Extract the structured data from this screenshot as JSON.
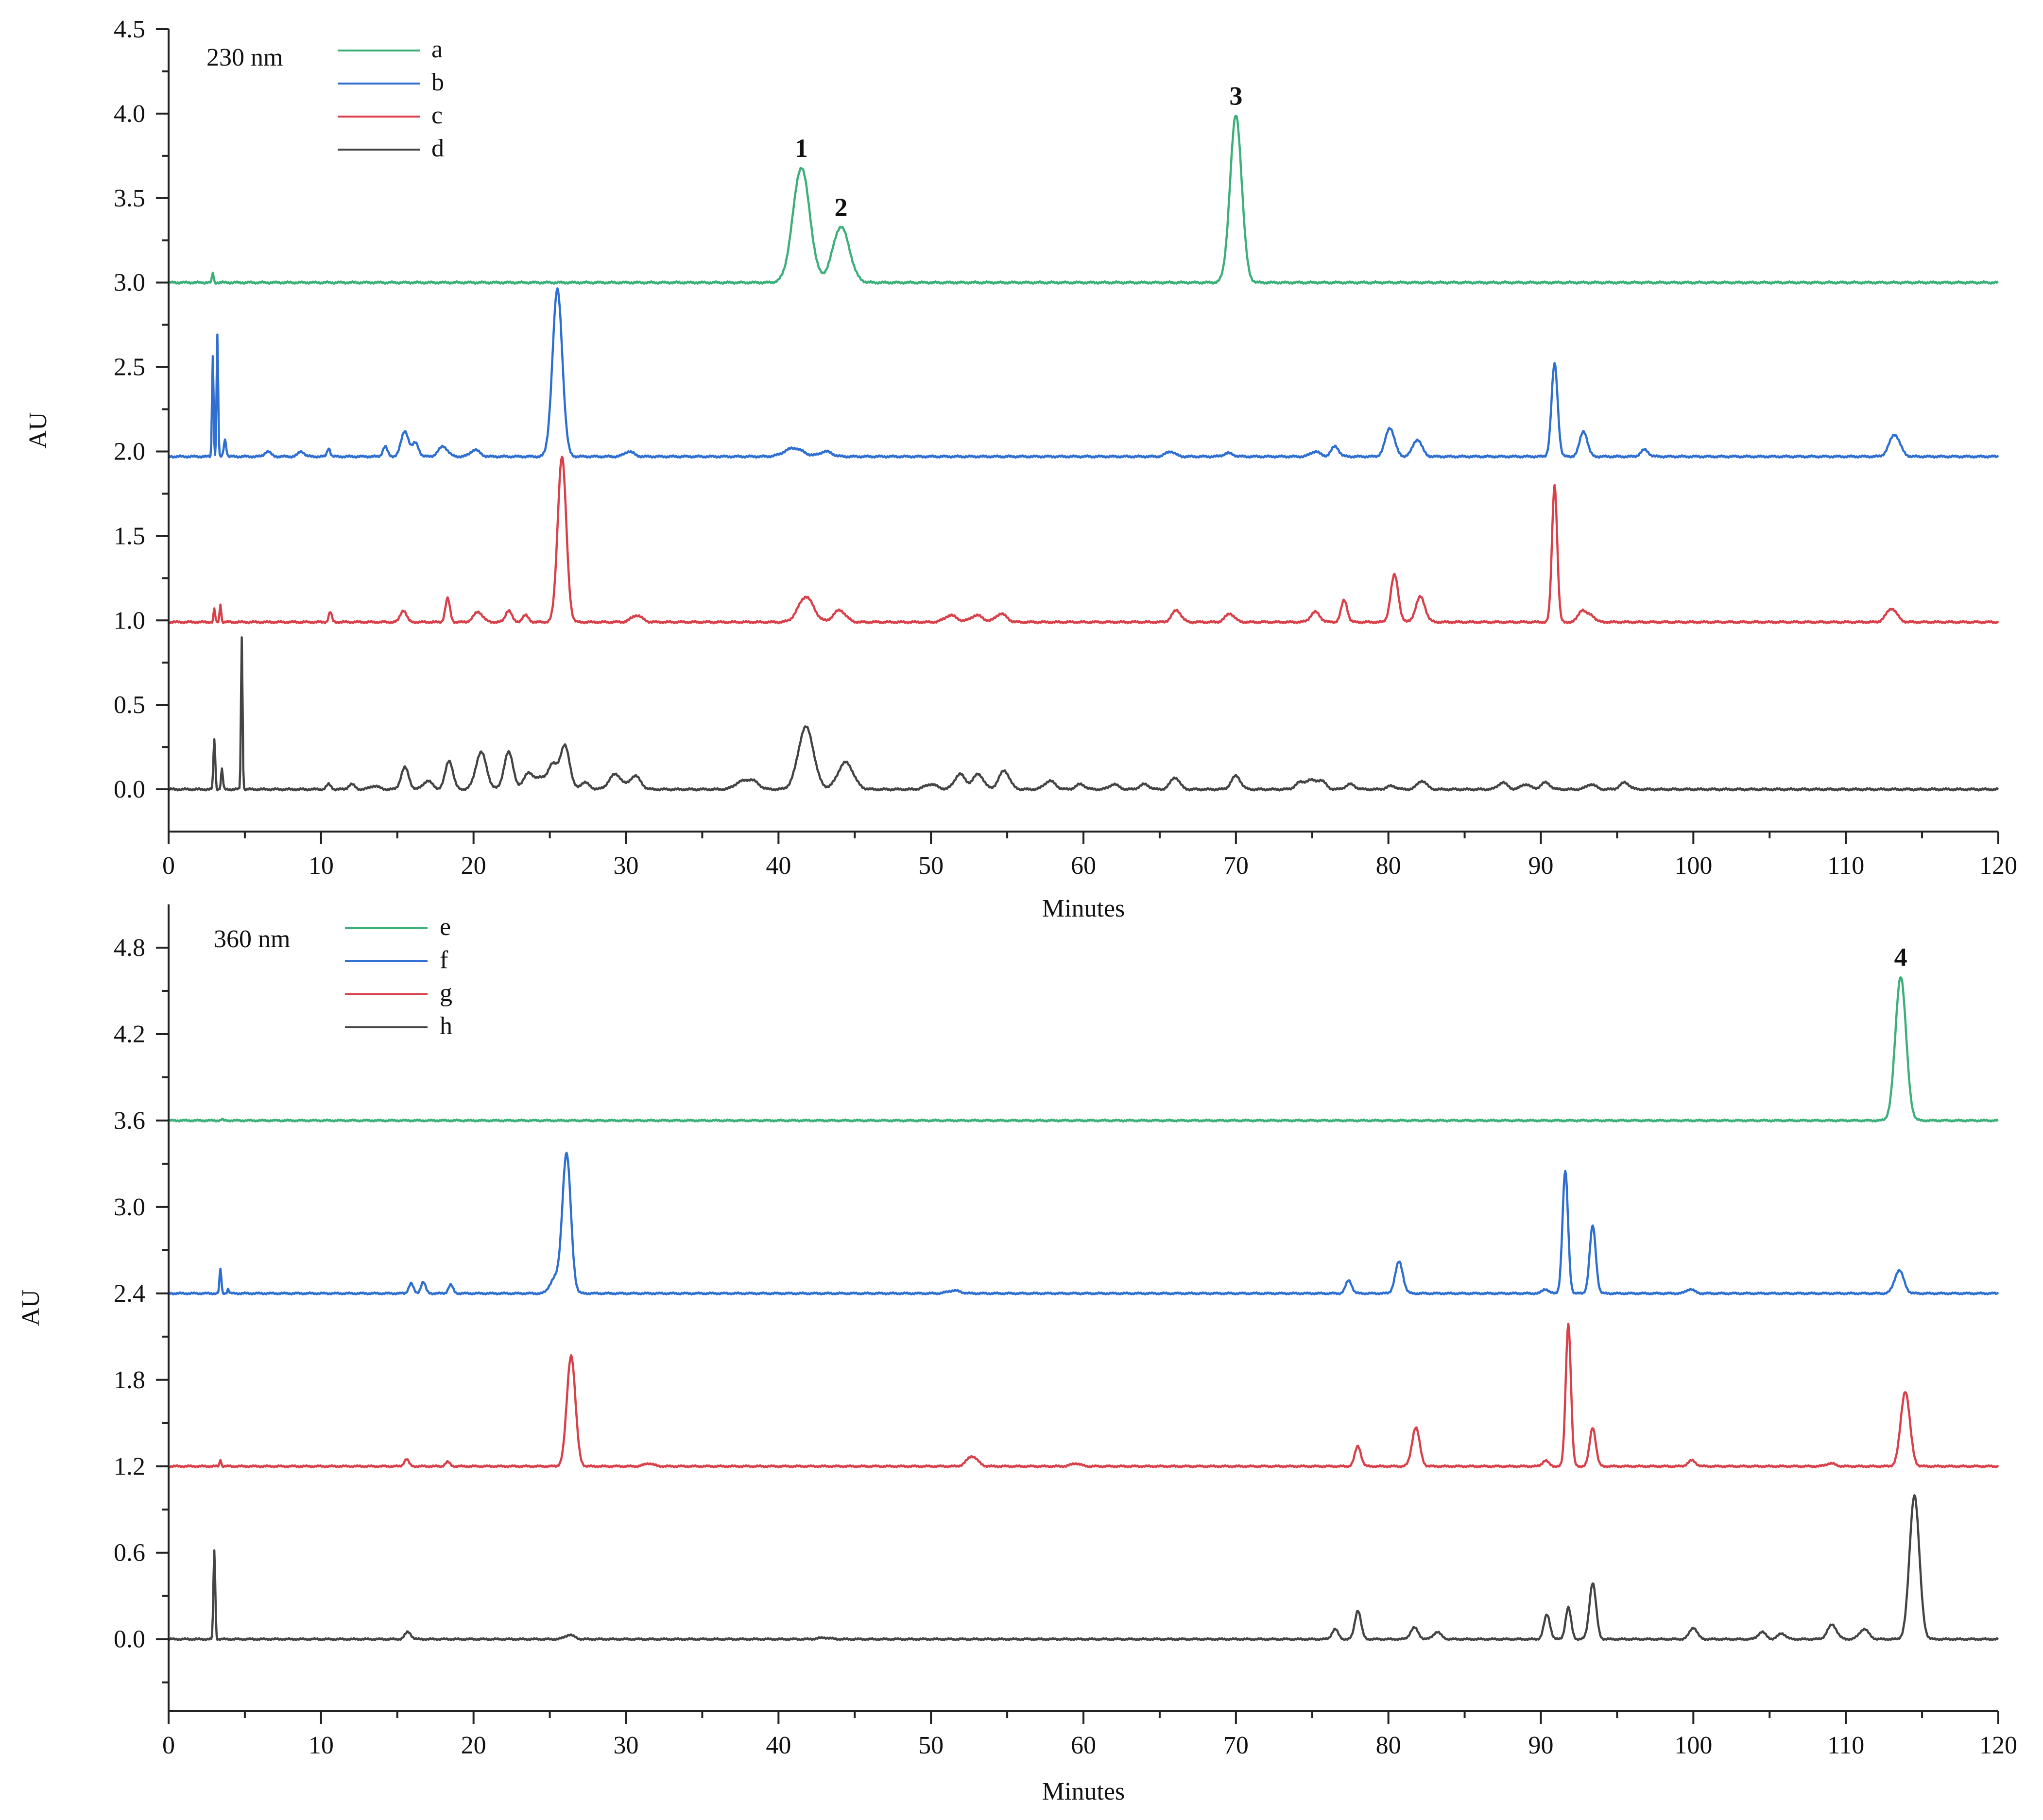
{
  "chart_data": [
    {
      "type": "line",
      "wavelength_label": "230 nm",
      "xlabel": "Minutes",
      "ylabel": "AU",
      "xlim": [
        0,
        120
      ],
      "ylim": [
        -0.25,
        4.5
      ],
      "x_ticks": [
        0,
        10,
        20,
        30,
        40,
        50,
        60,
        70,
        80,
        90,
        100,
        110,
        120
      ],
      "y_ticks": [
        0.0,
        0.5,
        1.0,
        1.5,
        2.0,
        2.5,
        3.0,
        3.5,
        4.0,
        4.5
      ],
      "x_tick_labels": [
        "0",
        "10",
        "20",
        "30",
        "40",
        "50",
        "60",
        "70",
        "80",
        "90",
        "100",
        "110",
        "120"
      ],
      "y_tick_labels": [
        "0.0",
        "0.5",
        "1.0",
        "1.5",
        "2.0",
        "2.5",
        "3.0",
        "3.5",
        "4.0",
        "4.5"
      ],
      "legend_position": "top-left",
      "grid": false,
      "series": [
        {
          "name": "a",
          "color": "#3cb07a",
          "baseline": 3.0,
          "peaks": [
            [
              2.9,
              0.06,
              0.05
            ],
            [
              41.5,
              0.68,
              0.55
            ],
            [
              44.1,
              0.33,
              0.55
            ],
            [
              70.0,
              0.99,
              0.38
            ]
          ]
        },
        {
          "name": "b",
          "color": "#2e6fd1",
          "baseline": 1.97,
          "peaks": [
            [
              2.9,
              0.6,
              0.05
            ],
            [
              3.2,
              0.72,
              0.05
            ],
            [
              3.7,
              0.1,
              0.08
            ],
            [
              6.5,
              0.03,
              0.2
            ],
            [
              8.7,
              0.03,
              0.2
            ],
            [
              10.5,
              0.05,
              0.1
            ],
            [
              14.2,
              0.06,
              0.15
            ],
            [
              15.5,
              0.15,
              0.25
            ],
            [
              16.2,
              0.08,
              0.2
            ],
            [
              18.0,
              0.06,
              0.3
            ],
            [
              20.1,
              0.04,
              0.3
            ],
            [
              25.5,
              0.99,
              0.32
            ],
            [
              30.2,
              0.03,
              0.3
            ],
            [
              41.0,
              0.05,
              0.6
            ],
            [
              43.1,
              0.03,
              0.4
            ],
            [
              65.7,
              0.03,
              0.3
            ],
            [
              69.5,
              0.02,
              0.3
            ],
            [
              75.2,
              0.03,
              0.3
            ],
            [
              76.5,
              0.06,
              0.25
            ],
            [
              80.1,
              0.17,
              0.3
            ],
            [
              81.9,
              0.1,
              0.3
            ],
            [
              90.9,
              0.55,
              0.2
            ],
            [
              92.8,
              0.15,
              0.25
            ],
            [
              96.8,
              0.04,
              0.25
            ],
            [
              113.2,
              0.13,
              0.35
            ]
          ]
        },
        {
          "name": "c",
          "color": "#d9414a",
          "baseline": 0.99,
          "peaks": [
            [
              3.0,
              0.08,
              0.05
            ],
            [
              3.4,
              0.11,
              0.05
            ],
            [
              10.6,
              0.06,
              0.1
            ],
            [
              15.4,
              0.07,
              0.2
            ],
            [
              18.3,
              0.14,
              0.15
            ],
            [
              20.3,
              0.06,
              0.3
            ],
            [
              22.3,
              0.07,
              0.2
            ],
            [
              23.4,
              0.04,
              0.2
            ],
            [
              25.8,
              0.98,
              0.28
            ],
            [
              30.7,
              0.04,
              0.35
            ],
            [
              41.8,
              0.15,
              0.5
            ],
            [
              44.0,
              0.07,
              0.4
            ],
            [
              51.3,
              0.04,
              0.4
            ],
            [
              53.0,
              0.04,
              0.4
            ],
            [
              54.6,
              0.05,
              0.35
            ],
            [
              66.1,
              0.07,
              0.3
            ],
            [
              69.6,
              0.05,
              0.3
            ],
            [
              75.2,
              0.06,
              0.3
            ],
            [
              77.1,
              0.13,
              0.2
            ],
            [
              80.4,
              0.28,
              0.25
            ],
            [
              82.1,
              0.15,
              0.3
            ],
            [
              90.9,
              0.81,
              0.17
            ],
            [
              92.7,
              0.07,
              0.25
            ],
            [
              93.3,
              0.04,
              0.25
            ],
            [
              113.0,
              0.08,
              0.35
            ]
          ]
        },
        {
          "name": "d",
          "color": "#444444",
          "baseline": 0.0,
          "peaks": [
            [
              3.0,
              0.3,
              0.06
            ],
            [
              3.5,
              0.12,
              0.06
            ],
            [
              4.8,
              0.9,
              0.05
            ],
            [
              10.5,
              0.03,
              0.15
            ],
            [
              12.0,
              0.03,
              0.2
            ],
            [
              13.5,
              0.02,
              0.3
            ],
            [
              15.5,
              0.13,
              0.25
            ],
            [
              17.0,
              0.05,
              0.3
            ],
            [
              18.4,
              0.17,
              0.25
            ],
            [
              20.5,
              0.22,
              0.35
            ],
            [
              22.3,
              0.22,
              0.3
            ],
            [
              23.6,
              0.1,
              0.3
            ],
            [
              24.4,
              0.07,
              0.3
            ],
            [
              25.2,
              0.15,
              0.3
            ],
            [
              26.0,
              0.26,
              0.3
            ],
            [
              27.3,
              0.04,
              0.3
            ],
            [
              29.3,
              0.09,
              0.4
            ],
            [
              30.6,
              0.08,
              0.35
            ],
            [
              37.5,
              0.04,
              0.4
            ],
            [
              38.3,
              0.05,
              0.4
            ],
            [
              41.8,
              0.37,
              0.5
            ],
            [
              44.4,
              0.16,
              0.5
            ],
            [
              50.0,
              0.03,
              0.4
            ],
            [
              51.9,
              0.09,
              0.35
            ],
            [
              53.1,
              0.09,
              0.35
            ],
            [
              54.8,
              0.11,
              0.35
            ],
            [
              57.8,
              0.05,
              0.35
            ],
            [
              59.8,
              0.03,
              0.3
            ],
            [
              62.0,
              0.03,
              0.3
            ],
            [
              64.0,
              0.03,
              0.3
            ],
            [
              66.0,
              0.07,
              0.3
            ],
            [
              70.0,
              0.08,
              0.3
            ],
            [
              74.2,
              0.04,
              0.3
            ],
            [
              74.9,
              0.05,
              0.3
            ],
            [
              75.6,
              0.05,
              0.3
            ],
            [
              77.5,
              0.03,
              0.3
            ],
            [
              80.2,
              0.02,
              0.3
            ],
            [
              82.2,
              0.05,
              0.3
            ],
            [
              87.5,
              0.04,
              0.3
            ],
            [
              89.0,
              0.03,
              0.3
            ],
            [
              90.3,
              0.04,
              0.3
            ],
            [
              93.3,
              0.03,
              0.3
            ],
            [
              95.5,
              0.04,
              0.3
            ]
          ]
        }
      ],
      "annotations": [
        {
          "label": "1",
          "x": 41.5,
          "y": 3.68
        },
        {
          "label": "2",
          "x": 44.1,
          "y": 3.33
        },
        {
          "label": "3",
          "x": 70.0,
          "y": 3.99
        }
      ]
    },
    {
      "type": "line",
      "wavelength_label": "360 nm",
      "xlabel": "Minutes",
      "ylabel": "AU",
      "xlim": [
        0,
        120
      ],
      "ylim": [
        -0.5,
        5.1
      ],
      "x_ticks": [
        0,
        10,
        20,
        30,
        40,
        50,
        60,
        70,
        80,
        90,
        100,
        110,
        120
      ],
      "y_ticks": [
        0.0,
        0.6,
        1.2,
        1.8,
        2.4,
        3.0,
        3.6,
        4.2,
        4.8
      ],
      "x_tick_labels": [
        "0",
        "10",
        "20",
        "30",
        "40",
        "50",
        "60",
        "70",
        "80",
        "90",
        "100",
        "110",
        "120"
      ],
      "y_tick_labels": [
        "0.0",
        "0.6",
        "1.2",
        "1.8",
        "2.4",
        "3.0",
        "3.6",
        "4.2",
        "4.8"
      ],
      "legend_position": "top-left",
      "grid": false,
      "series": [
        {
          "name": "e",
          "color": "#3cb07a",
          "baseline": 3.6,
          "peaks": [
            [
              3.5,
              0.01,
              0.05
            ],
            [
              113.6,
              1.0,
              0.35
            ]
          ]
        },
        {
          "name": "f",
          "color": "#2e6fd1",
          "baseline": 2.4,
          "peaks": [
            [
              3.4,
              0.17,
              0.06
            ],
            [
              3.9,
              0.03,
              0.06
            ],
            [
              15.9,
              0.07,
              0.15
            ],
            [
              16.7,
              0.08,
              0.15
            ],
            [
              18.5,
              0.06,
              0.15
            ],
            [
              25.3,
              0.1,
              0.3
            ],
            [
              26.1,
              0.97,
              0.28
            ],
            [
              51.5,
              0.02,
              0.4
            ],
            [
              77.4,
              0.09,
              0.2
            ],
            [
              80.7,
              0.22,
              0.25
            ],
            [
              90.3,
              0.03,
              0.2
            ],
            [
              91.6,
              0.85,
              0.18
            ],
            [
              93.4,
              0.47,
              0.2
            ],
            [
              99.8,
              0.03,
              0.25
            ],
            [
              113.5,
              0.16,
              0.3
            ]
          ]
        },
        {
          "name": "g",
          "color": "#d9414a",
          "baseline": 1.2,
          "peaks": [
            [
              3.4,
              0.05,
              0.05
            ],
            [
              15.6,
              0.05,
              0.15
            ],
            [
              18.3,
              0.03,
              0.15
            ],
            [
              26.4,
              0.77,
              0.28
            ],
            [
              31.5,
              0.02,
              0.3
            ],
            [
              52.7,
              0.07,
              0.35
            ],
            [
              59.5,
              0.02,
              0.3
            ],
            [
              78.0,
              0.14,
              0.2
            ],
            [
              81.8,
              0.27,
              0.25
            ],
            [
              90.3,
              0.04,
              0.2
            ],
            [
              91.8,
              0.99,
              0.17
            ],
            [
              93.4,
              0.27,
              0.2
            ],
            [
              99.9,
              0.04,
              0.25
            ],
            [
              109.0,
              0.02,
              0.3
            ],
            [
              113.9,
              0.52,
              0.3
            ]
          ]
        },
        {
          "name": "h",
          "color": "#444444",
          "baseline": 0.0,
          "peaks": [
            [
              3.0,
              0.62,
              0.06
            ],
            [
              15.7,
              0.05,
              0.2
            ],
            [
              26.3,
              0.03,
              0.3
            ],
            [
              43.0,
              0.01,
              0.4
            ],
            [
              76.5,
              0.07,
              0.2
            ],
            [
              78.0,
              0.2,
              0.2
            ],
            [
              81.7,
              0.08,
              0.25
            ],
            [
              83.2,
              0.05,
              0.25
            ],
            [
              90.4,
              0.17,
              0.2
            ],
            [
              91.8,
              0.22,
              0.18
            ],
            [
              93.4,
              0.39,
              0.22
            ],
            [
              100.0,
              0.08,
              0.25
            ],
            [
              104.5,
              0.05,
              0.25
            ],
            [
              105.8,
              0.04,
              0.25
            ],
            [
              109.1,
              0.1,
              0.3
            ],
            [
              111.2,
              0.07,
              0.3
            ],
            [
              114.5,
              1.0,
              0.32
            ]
          ]
        }
      ],
      "annotations": [
        {
          "label": "4",
          "x": 113.6,
          "y": 4.6
        }
      ]
    }
  ]
}
